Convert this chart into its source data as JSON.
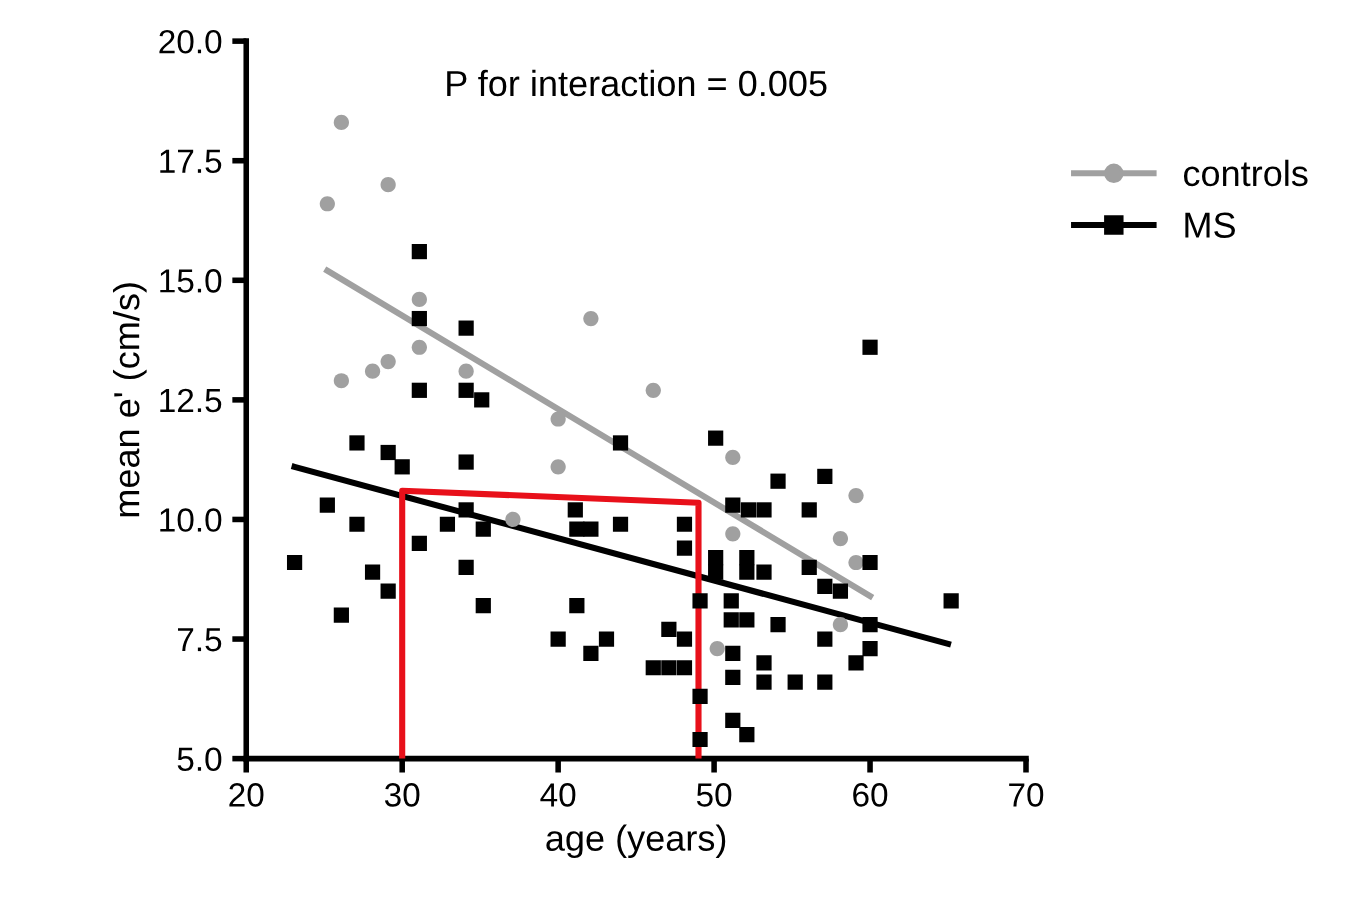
{
  "chart_data": {
    "type": "scatter",
    "xlabel": "age (years)",
    "ylabel": "mean e' (cm/s)",
    "annotations": [
      "P for interaction = 0.005"
    ],
    "xlim": [
      20,
      70
    ],
    "xticks": [
      20,
      30,
      40,
      50,
      60,
      70
    ],
    "ylim": [
      5.0,
      20.0
    ],
    "yticks": [
      {
        "value": 5.0,
        "label": "5.0"
      },
      {
        "value": 7.5,
        "label": "7.5"
      },
      {
        "value": 10.0,
        "label": "10.0"
      },
      {
        "value": 12.5,
        "label": "12.5"
      },
      {
        "value": 15.0,
        "label": "15.0"
      },
      {
        "value": 17.5,
        "label": "17.5"
      },
      {
        "value": 20.0,
        "label": "20.0"
      }
    ],
    "grid": false,
    "legend": "top right",
    "series": [
      {
        "name": "controls",
        "marker": "circle",
        "color": "#a0a0a0",
        "x": [
          26.1,
          25.2,
          29.1,
          31.1,
          31.1,
          34.1,
          42.1,
          26.1,
          28.1,
          29.1,
          40,
          40,
          37.1,
          46.1,
          51.2,
          59.1,
          51.2,
          58.1,
          59.1,
          50.2,
          58.1
        ],
        "values": [
          18.3,
          16.6,
          17.0,
          14.6,
          13.6,
          13.1,
          14.2,
          12.9,
          13.1,
          13.3,
          12.1,
          11.1,
          10.0,
          12.7,
          11.3,
          10.5,
          9.7,
          9.6,
          9.1,
          7.3,
          7.8
        ]
      },
      {
        "name": "MS",
        "marker": "square",
        "color": "#000000",
        "x": [
          31.1,
          31.1,
          34.1,
          31.1,
          34.1,
          35.1,
          27.1,
          29.1,
          30.0,
          34.1,
          25.2,
          27.1,
          23.1,
          28.1,
          29.1,
          26.1,
          31.1,
          32.9,
          34.1,
          35.2,
          34.1,
          35.2,
          41.1,
          41.2,
          42.1,
          44.0,
          41.2,
          40.0,
          42.1,
          43.1,
          44.0,
          50.1,
          54.1,
          57.1,
          56.1,
          51.2,
          52.2,
          53.2,
          48.1,
          48.1,
          60.0,
          50.1,
          50.1,
          52.1,
          52.1,
          53.2,
          56.1,
          57.1,
          58.1,
          49.1,
          51.1,
          51.1,
          52.1,
          54.1,
          57.1,
          60.0,
          60.0,
          59.1,
          65.2,
          60.0,
          47.1,
          48.1,
          46.1,
          47.1,
          48.1,
          49.1,
          49.1,
          51.2,
          51.2,
          53.2,
          53.2,
          55.2,
          57.1,
          51.2,
          52.1
        ],
        "values": [
          15.6,
          14.2,
          14.0,
          12.7,
          12.7,
          12.5,
          11.6,
          11.4,
          11.1,
          11.2,
          10.3,
          9.9,
          9.1,
          8.9,
          8.5,
          8.0,
          9.5,
          9.9,
          10.2,
          9.8,
          9.0,
          8.2,
          10.2,
          9.8,
          9.8,
          9.9,
          8.2,
          7.5,
          7.2,
          7.5,
          11.6,
          11.7,
          10.8,
          10.9,
          10.2,
          10.3,
          10.2,
          10.2,
          9.9,
          9.4,
          9.1,
          9.2,
          8.9,
          9.2,
          8.9,
          8.9,
          9.0,
          8.6,
          8.5,
          8.3,
          8.3,
          7.9,
          7.9,
          7.8,
          7.5,
          7.8,
          7.3,
          7.0,
          8.3,
          13.6,
          7.7,
          7.5,
          6.9,
          6.9,
          6.9,
          6.3,
          5.4,
          7.2,
          6.7,
          7.0,
          6.6,
          6.6,
          6.6,
          5.8,
          5.5
        ]
      },
      {
        "type": "line",
        "color": "#a0a0a0",
        "x": [
          25.2,
          60.0
        ],
        "values": [
          15.2,
          8.4
        ]
      },
      {
        "type": "line",
        "color": "#000000",
        "x": [
          23.1,
          65.0
        ],
        "values": [
          11.1,
          7.4
        ]
      },
      {
        "type": "line",
        "color": "#e8101a",
        "x": [
          30.0,
          30.0,
          49.0,
          49.0
        ],
        "values": [
          5.0,
          10.6,
          10.35,
          5.0
        ]
      }
    ]
  }
}
